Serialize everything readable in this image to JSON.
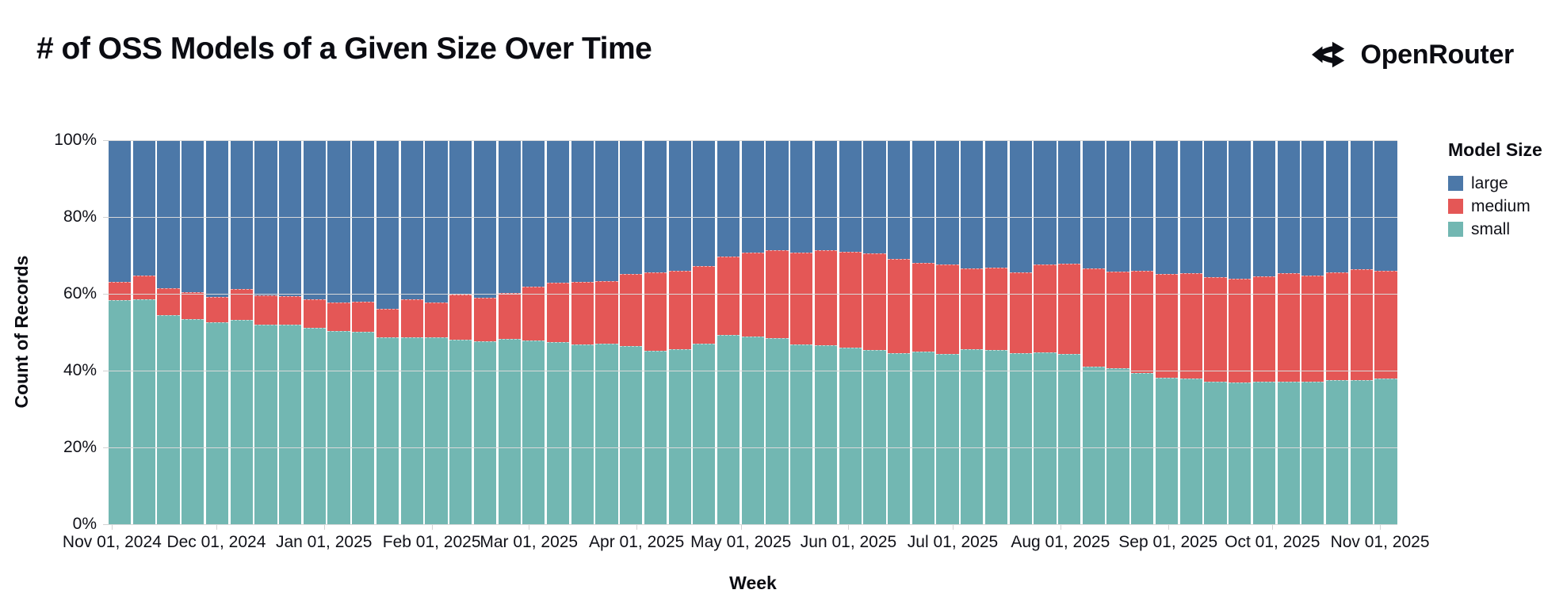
{
  "header": {
    "title": "# of OSS Models of a Given Size Over Time",
    "logo_text": "OpenRouter"
  },
  "colors": {
    "background": "#ffffff",
    "text": "#0c0d14",
    "grid": "#d9d9d9",
    "large": "#4c78a8",
    "medium": "#e45756",
    "small": "#72b7b2"
  },
  "chart_data": {
    "type": "bar",
    "stacked": true,
    "normalized_percent": true,
    "title": "# of OSS Models of a Given Size Over Time",
    "xlabel": "Week",
    "ylabel": "Count of Records",
    "ylim": [
      0,
      100
    ],
    "grid": true,
    "y_tick_labels": [
      "0%",
      "20%",
      "40%",
      "60%",
      "80%",
      "100%"
    ],
    "x_tick_labels": [
      "Nov 01, 2024",
      "Dec 01, 2024",
      "Jan 01, 2025",
      "Feb 01, 2025",
      "Mar 01, 2025",
      "Apr 01, 2025",
      "May 01, 2025",
      "Jun 01, 2025",
      "Jul 01, 2025",
      "Aug 01, 2025",
      "Sep 01, 2025",
      "Oct 01, 2025",
      "Nov 01, 2025"
    ],
    "x_tick_positions_pct": [
      0.27,
      8.36,
      16.71,
      25.07,
      32.61,
      40.97,
      49.06,
      57.41,
      65.5,
      73.85,
      82.21,
      90.3,
      98.65
    ],
    "legend": {
      "title": "Model Size",
      "position": "right",
      "entries": [
        {
          "label": "large",
          "color": "#4c78a8"
        },
        {
          "label": "medium",
          "color": "#e45756"
        },
        {
          "label": "small",
          "color": "#72b7b2"
        }
      ]
    },
    "categories": [
      "2024-10-27",
      "2024-11-03",
      "2024-11-10",
      "2024-11-17",
      "2024-11-24",
      "2024-12-01",
      "2024-12-08",
      "2024-12-15",
      "2024-12-22",
      "2024-12-29",
      "2025-01-05",
      "2025-01-12",
      "2025-01-19",
      "2025-01-26",
      "2025-02-02",
      "2025-02-09",
      "2025-02-16",
      "2025-02-23",
      "2025-03-02",
      "2025-03-09",
      "2025-03-16",
      "2025-03-23",
      "2025-03-30",
      "2025-04-06",
      "2025-04-13",
      "2025-04-20",
      "2025-04-27",
      "2025-05-04",
      "2025-05-11",
      "2025-05-18",
      "2025-05-25",
      "2025-06-01",
      "2025-06-08",
      "2025-06-15",
      "2025-06-22",
      "2025-06-29",
      "2025-07-06",
      "2025-07-13",
      "2025-07-20",
      "2025-07-27",
      "2025-08-03",
      "2025-08-10",
      "2025-08-17",
      "2025-08-24",
      "2025-08-31",
      "2025-09-07",
      "2025-09-14",
      "2025-09-21",
      "2025-09-28",
      "2025-10-05",
      "2025-10-12",
      "2025-10-19",
      "2025-10-26"
    ],
    "series": [
      {
        "name": "large",
        "color": "#4c78a8",
        "values": [
          37.0,
          35.5,
          38.8,
          39.7,
          41.0,
          39.0,
          40.5,
          40.7,
          41.7,
          42.4,
          42.2,
          44.1,
          41.7,
          42.4,
          40.3,
          41.2,
          39.9,
          38.3,
          37.2,
          37.0,
          36.8,
          35.0,
          34.5,
          34.2,
          33.0,
          30.4,
          29.4,
          28.8,
          29.5,
          28.8,
          29.1,
          29.6,
          31.1,
          32.0,
          32.6,
          33.6,
          33.3,
          34.5,
          32.6,
          32.4,
          33.5,
          34.3,
          34.2,
          35.0,
          34.8,
          35.8,
          36.2,
          35.7,
          34.8,
          35.5,
          34.6,
          33.8,
          34.1
        ]
      },
      {
        "name": "medium",
        "color": "#e45756",
        "values": [
          4.7,
          5.9,
          6.8,
          6.8,
          6.5,
          7.8,
          7.5,
          7.3,
          7.2,
          7.2,
          7.6,
          7.2,
          9.6,
          8.9,
          11.7,
          11.2,
          11.9,
          13.9,
          15.4,
          16.2,
          16.2,
          18.6,
          20.3,
          20.2,
          20.0,
          20.4,
          21.8,
          22.7,
          23.8,
          24.7,
          24.9,
          25.0,
          24.3,
          23.1,
          23.0,
          20.8,
          21.4,
          20.9,
          22.7,
          23.2,
          25.4,
          25.2,
          26.4,
          27.0,
          27.3,
          27.2,
          27.0,
          27.3,
          28.2,
          27.5,
          28.0,
          28.7,
          28.0
        ]
      },
      {
        "name": "small",
        "color": "#72b7b2",
        "values": [
          58.3,
          58.6,
          54.4,
          53.5,
          52.5,
          53.2,
          52.0,
          52.0,
          51.1,
          50.4,
          50.2,
          48.7,
          48.7,
          48.7,
          48.0,
          47.6,
          48.2,
          47.8,
          47.4,
          46.8,
          47.0,
          46.4,
          45.2,
          45.6,
          47.0,
          49.2,
          48.8,
          48.5,
          46.7,
          46.5,
          46.0,
          45.4,
          44.6,
          44.9,
          44.4,
          45.6,
          45.3,
          44.6,
          44.7,
          44.4,
          41.1,
          40.5,
          39.4,
          38.0,
          37.9,
          37.0,
          36.8,
          37.0,
          37.0,
          37.0,
          37.4,
          37.5,
          37.9
        ]
      }
    ]
  }
}
